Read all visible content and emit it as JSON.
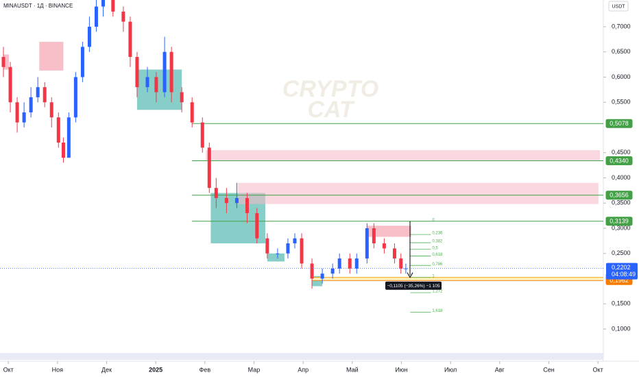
{
  "chart_data": {
    "type": "candlestick",
    "title": "MINAUSDT · 1Д · BINANCE",
    "currency_button": "USDT",
    "watermark": [
      "CRYPTO",
      "CAT"
    ],
    "colors": {
      "up": "#2962ff",
      "down": "#f23645"
    },
    "xlim": [
      -0.17,
      12.11
    ],
    "ylim": [
      0.0524,
      0.753
    ],
    "xticks": [
      {
        "value": 0,
        "label": "Окт"
      },
      {
        "value": 1,
        "label": "Ноя"
      },
      {
        "value": 2,
        "label": "Дек"
      },
      {
        "value": 3,
        "label": "2025"
      },
      {
        "value": 4,
        "label": "Фев"
      },
      {
        "value": 5,
        "label": "Мар"
      },
      {
        "value": 6,
        "label": "Апр"
      },
      {
        "value": 7,
        "label": "Май"
      },
      {
        "value": 8,
        "label": "Июн"
      },
      {
        "value": 9,
        "label": "Июл"
      },
      {
        "value": 10,
        "label": "Авг"
      },
      {
        "value": 11,
        "label": "Сен"
      },
      {
        "value": 12,
        "label": "Окт"
      }
    ],
    "yticks": [
      {
        "value": 0.7,
        "label": "0,7000"
      },
      {
        "value": 0.65,
        "label": "0,6500"
      },
      {
        "value": 0.6,
        "label": "0,6000"
      },
      {
        "value": 0.55,
        "label": "0,5500"
      },
      {
        "value": 0.45,
        "label": "0,4500"
      },
      {
        "value": 0.4,
        "label": "0,4000"
      },
      {
        "value": 0.35,
        "label": "0,3500"
      },
      {
        "value": 0.3,
        "label": "0,3000"
      },
      {
        "value": 0.25,
        "label": "0,2500"
      },
      {
        "value": 0.15,
        "label": "0,1500"
      },
      {
        "value": 0.1,
        "label": "0,1000"
      }
    ],
    "x": [
      -0.1,
      0.04,
      0.18,
      0.32,
      0.46,
      0.6,
      0.74,
      0.88,
      1.02,
      1.12,
      1.23,
      1.37,
      1.51,
      1.65,
      1.79,
      1.93,
      2.13,
      2.34,
      2.48,
      2.62,
      2.83,
      3.01,
      3.18,
      3.32,
      3.53,
      3.74,
      3.95,
      4.09,
      4.23,
      4.44,
      4.65,
      4.86,
      5.06,
      5.27,
      5.48,
      5.69,
      5.83,
      5.97,
      6.18,
      6.39,
      6.6,
      6.74,
      6.95,
      7.09,
      7.3,
      7.44,
      7.65,
      7.86,
      7.99,
      8.09
    ],
    "open": [
      0.64,
      0.62,
      0.55,
      0.51,
      0.53,
      0.56,
      0.58,
      0.55,
      0.52,
      0.47,
      0.44,
      0.52,
      0.6,
      0.66,
      0.7,
      0.74,
      0.76,
      0.73,
      0.71,
      0.64,
      0.58,
      0.6,
      0.57,
      0.65,
      0.57,
      0.55,
      0.51,
      0.46,
      0.38,
      0.36,
      0.35,
      0.36,
      0.33,
      0.28,
      0.25,
      0.25,
      0.27,
      0.28,
      0.23,
      0.2,
      0.21,
      0.22,
      0.24,
      0.22,
      0.24,
      0.3,
      0.27,
      0.26,
      0.24,
      0.22
    ],
    "high": [
      0.66,
      0.63,
      0.56,
      0.55,
      0.58,
      0.6,
      0.59,
      0.56,
      0.53,
      0.48,
      0.53,
      0.61,
      0.67,
      0.72,
      0.76,
      0.78,
      0.78,
      0.74,
      0.72,
      0.65,
      0.62,
      0.61,
      0.68,
      0.66,
      0.58,
      0.56,
      0.52,
      0.47,
      0.4,
      0.38,
      0.39,
      0.37,
      0.34,
      0.29,
      0.26,
      0.28,
      0.29,
      0.29,
      0.24,
      0.22,
      0.23,
      0.25,
      0.25,
      0.25,
      0.31,
      0.31,
      0.28,
      0.27,
      0.25,
      0.23
    ],
    "low": [
      0.6,
      0.53,
      0.49,
      0.5,
      0.52,
      0.55,
      0.54,
      0.5,
      0.46,
      0.43,
      0.44,
      0.51,
      0.59,
      0.65,
      0.69,
      0.72,
      0.72,
      0.69,
      0.62,
      0.56,
      0.57,
      0.55,
      0.56,
      0.55,
      0.53,
      0.5,
      0.45,
      0.37,
      0.34,
      0.33,
      0.34,
      0.31,
      0.27,
      0.24,
      0.24,
      0.24,
      0.26,
      0.22,
      0.18,
      0.19,
      0.2,
      0.21,
      0.21,
      0.21,
      0.23,
      0.26,
      0.25,
      0.23,
      0.21,
      0.21
    ],
    "close": [
      0.62,
      0.55,
      0.51,
      0.53,
      0.56,
      0.58,
      0.55,
      0.52,
      0.47,
      0.44,
      0.52,
      0.6,
      0.66,
      0.7,
      0.74,
      0.76,
      0.73,
      0.71,
      0.64,
      0.58,
      0.6,
      0.57,
      0.65,
      0.57,
      0.55,
      0.51,
      0.46,
      0.38,
      0.36,
      0.35,
      0.36,
      0.33,
      0.28,
      0.25,
      0.25,
      0.27,
      0.28,
      0.23,
      0.2,
      0.21,
      0.22,
      0.24,
      0.22,
      0.24,
      0.3,
      0.27,
      0.26,
      0.24,
      0.22,
      0.2202
    ],
    "zones": [
      {
        "x": [
          0.63,
          1.12
        ],
        "y": [
          0.613,
          0.67
        ],
        "color": "#f28a9a"
      },
      {
        "x": [
          -0.1,
          0.01
        ],
        "y": [
          0.615,
          0.645
        ],
        "color": "#f28a9a"
      },
      {
        "x": [
          2.62,
          3.53
        ],
        "y": [
          0.535,
          0.615
        ],
        "color": "#26a69a"
      },
      {
        "x": [
          4.12,
          5.23
        ],
        "y": [
          0.27,
          0.37
        ],
        "color": "#26a69a"
      },
      {
        "x": [
          5.27,
          5.62
        ],
        "y": [
          0.234,
          0.25
        ],
        "color": "#26a69a"
      },
      {
        "x": [
          6.18,
          6.39
        ],
        "y": [
          0.185,
          0.205
        ],
        "color": "#26a69a"
      },
      {
        "x": [
          4.02,
          12.04
        ],
        "y": [
          0.435,
          0.455
        ],
        "color": "#f5b8c4"
      },
      {
        "x": [
          4.67,
          12.01
        ],
        "y": [
          0.348,
          0.39
        ],
        "color": "#f5b8c4"
      },
      {
        "x": [
          7.3,
          8.2
        ],
        "y": [
          0.283,
          0.305
        ],
        "color": "#f28a9a"
      }
    ],
    "levels": [
      {
        "value": 0.5078,
        "label": "0,5078",
        "color": "#43a047"
      },
      {
        "value": 0.434,
        "label": "0,4340",
        "color": "#43a047"
      },
      {
        "value": 0.3656,
        "label": "0,3656",
        "color": "#43a047"
      },
      {
        "value": 0.3139,
        "label": "0,3139",
        "color": "#43a047"
      },
      {
        "value": 0.2024,
        "label": "0,2024",
        "color": "#f7a600"
      },
      {
        "value": 0.1962,
        "label": "0,1962",
        "color": "#f57c00"
      }
    ],
    "last_price": {
      "value": 0.2202,
      "label": "0,2202",
      "countdown": "04:08:49",
      "color": "#2962ff"
    },
    "fib": {
      "top": 0.3139,
      "bottom": 0.2024,
      "x": [
        8.18,
        8.6
      ],
      "levels": [
        0,
        {
          "value": 0.236,
          "label": "0,236"
        },
        {
          "value": 0.382,
          "label": "0,382"
        },
        {
          "value": 0.5,
          "label": "0,5"
        },
        {
          "value": 0.618,
          "label": "0,618"
        },
        {
          "value": 0.786,
          "label": "0,786"
        },
        1,
        {
          "value": 1.272,
          "label": "1,272"
        },
        {
          "value": 1.618,
          "label": "1,618"
        }
      ]
    },
    "measure": {
      "label": "−0,1105 (−35,26%) −1 105"
    }
  }
}
